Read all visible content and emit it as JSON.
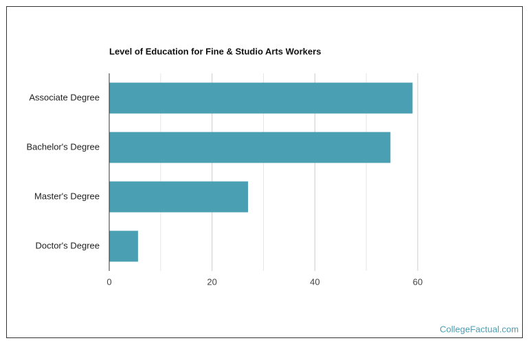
{
  "chart_data": {
    "type": "bar",
    "orientation": "horizontal",
    "title": "Level of Education for Fine & Studio Arts Workers",
    "categories": [
      "Associate Degree",
      "Bachelor's Degree",
      "Master's Degree",
      "Doctor's Degree"
    ],
    "values": [
      59,
      54.7,
      27,
      5.6
    ],
    "color": "#4a9fb3",
    "xlim": [
      0,
      60
    ],
    "xticks": [
      0,
      20,
      40,
      60
    ],
    "xminor": [
      10,
      30,
      50
    ],
    "grid": true,
    "source": "CollegeFactual.com"
  }
}
